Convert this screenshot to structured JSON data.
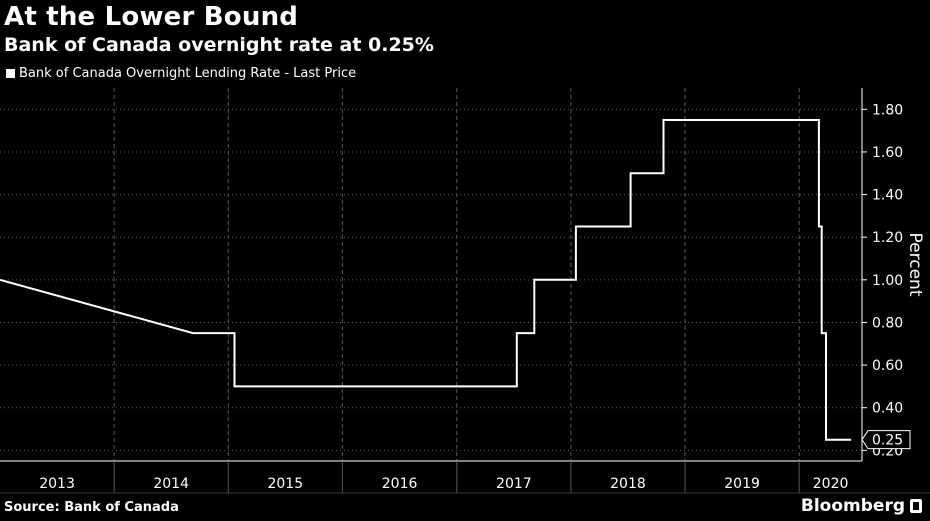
{
  "chart_data": {
    "type": "line",
    "title": "At the Lower Bound",
    "subtitle": "Bank of Canada overnight rate at 0.25%",
    "series": [
      {
        "name": "Bank of Canada Overnight Lending Rate - Last Price",
        "points": [
          [
            "2013-01-01",
            1.0
          ],
          [
            "2014-09-10",
            0.75
          ],
          [
            "2015-01-21",
            0.75
          ],
          [
            "2015-01-21",
            0.5
          ],
          [
            "2015-07-15",
            0.5
          ],
          [
            "2017-07-12",
            0.5
          ],
          [
            "2017-07-12",
            0.75
          ],
          [
            "2017-09-06",
            0.75
          ],
          [
            "2017-09-06",
            1.0
          ],
          [
            "2018-01-17",
            1.0
          ],
          [
            "2018-01-17",
            1.25
          ],
          [
            "2018-07-11",
            1.25
          ],
          [
            "2018-07-11",
            1.5
          ],
          [
            "2018-10-24",
            1.5
          ],
          [
            "2018-10-24",
            1.75
          ],
          [
            "2020-03-04",
            1.75
          ],
          [
            "2020-03-04",
            1.25
          ],
          [
            "2020-03-13",
            1.25
          ],
          [
            "2020-03-13",
            0.75
          ],
          [
            "2020-03-27",
            0.75
          ],
          [
            "2020-03-27",
            0.25
          ],
          [
            "2020-06-15",
            0.25
          ]
        ]
      }
    ],
    "last_value_label": "0.25",
    "ylabel": "Percent",
    "ylim": [
      0.15,
      1.9
    ],
    "yticks": [
      0.2,
      0.4,
      0.6,
      0.8,
      1.0,
      1.2,
      1.4,
      1.6,
      1.8
    ],
    "ytick_labels": [
      "0.20",
      "0.40",
      "0.60",
      "0.80",
      "1.00",
      "1.20",
      "1.40",
      "1.60",
      "1.80"
    ],
    "xlim": [
      "2013-01-01",
      "2020-07-20"
    ],
    "xticks": [
      "2013-01-01",
      "2014-01-01",
      "2015-01-01",
      "2016-01-01",
      "2017-01-01",
      "2018-01-01",
      "2019-01-01",
      "2020-01-01",
      "2020-07-20"
    ],
    "xtick_labels": [
      "2013",
      "2014",
      "2015",
      "2016",
      "2017",
      "2018",
      "2019",
      "2020"
    ],
    "grid": "vertical dashed",
    "legend_position": "top-left",
    "y_axis_position": "right"
  },
  "source": "Source: Bank of Canada",
  "brand": "Bloomberg",
  "colors": {
    "background": "#000000",
    "line": "#ffffff",
    "grid": "#5a5a5a"
  }
}
